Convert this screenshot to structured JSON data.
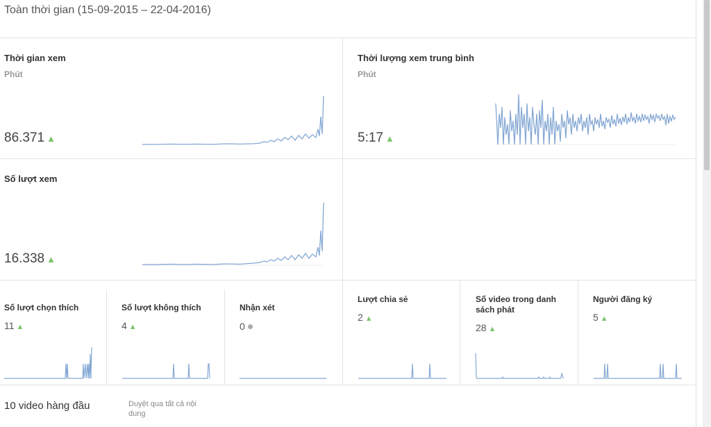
{
  "date_range": "Toàn thời gian (15-09-2015 – 22-04-2016)",
  "up_arrow": "▲",
  "watch_time": {
    "title": "Thời gian xem",
    "subtitle": "Phút",
    "value": "86.371"
  },
  "avg_duration": {
    "title": "Thời lượng xem trung bình",
    "subtitle": "Phút",
    "value": "5:17"
  },
  "views": {
    "title": "Số lượt xem",
    "value": "16.338"
  },
  "mini": [
    {
      "title": "Số lượt chọn thích",
      "value": "11",
      "trend": "up"
    },
    {
      "title": "Số lượt không thích",
      "value": "4",
      "trend": "up"
    },
    {
      "title": "Nhận xét",
      "value": "0",
      "trend": "neutral"
    },
    {
      "title": "Lượt chia sẻ",
      "value": "2",
      "trend": "up"
    },
    {
      "title": "Số video trong danh sách phát",
      "value": "28",
      "trend": "up"
    },
    {
      "title": "Người đăng ký",
      "value": "5",
      "trend": "up"
    }
  ],
  "top_videos": {
    "title": "10 video hàng đầu",
    "browse": "Duyệt qua tất cả nội dung"
  },
  "colors": {
    "line": "#85a8d4",
    "up": "#7cc46b",
    "neutral": "#aaaaaa",
    "border": "#e3e3e3"
  }
}
